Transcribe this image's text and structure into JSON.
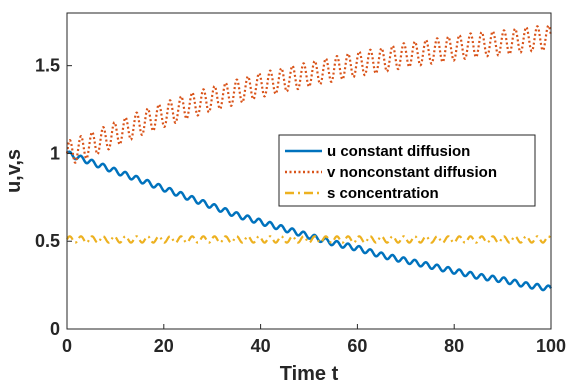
{
  "chart_data": {
    "type": "line",
    "title": "",
    "xlabel": "Time t",
    "ylabel": "u,v,s",
    "xlim": [
      0,
      100
    ],
    "ylim": [
      0,
      1.8
    ],
    "xticks": [
      0,
      20,
      40,
      60,
      80,
      100
    ],
    "xtick_labels": [
      "0",
      "20",
      "40",
      "60",
      "80",
      "100"
    ],
    "yticks": [
      0,
      0.5,
      1,
      1.5
    ],
    "ytick_labels": [
      "0",
      "0.5",
      "1",
      "1.5"
    ],
    "grid": false,
    "legend_position": "right, upper-middle",
    "x": [
      0,
      5,
      10,
      15,
      20,
      25,
      30,
      35,
      40,
      45,
      50,
      55,
      60,
      65,
      70,
      75,
      80,
      85,
      90,
      95,
      100
    ],
    "series": [
      {
        "name": "u constant diffusion",
        "color": "#0072BD",
        "style": "solid",
        "values": [
          1.0,
          0.95,
          0.9,
          0.85,
          0.8,
          0.75,
          0.7,
          0.65,
          0.61,
          0.57,
          0.53,
          0.49,
          0.46,
          0.42,
          0.39,
          0.36,
          0.33,
          0.3,
          0.28,
          0.25,
          0.23
        ],
        "oscillation": {
          "amplitude": 0.015,
          "period": 2.3
        }
      },
      {
        "name": "v nonconstant diffusion",
        "color": "#D95319",
        "style": "dotted",
        "values": [
          1.0,
          1.05,
          1.11,
          1.17,
          1.22,
          1.27,
          1.31,
          1.35,
          1.39,
          1.42,
          1.45,
          1.48,
          1.51,
          1.53,
          1.56,
          1.58,
          1.6,
          1.62,
          1.63,
          1.65,
          1.66
        ],
        "oscillation": {
          "amplitude": 0.07,
          "period": 2.3
        }
      },
      {
        "name": "s concentration",
        "color": "#EDB120",
        "style": "dashdot",
        "values": [
          0.51,
          0.51,
          0.51,
          0.51,
          0.51,
          0.51,
          0.51,
          0.51,
          0.51,
          0.51,
          0.51,
          0.51,
          0.51,
          0.51,
          0.51,
          0.51,
          0.51,
          0.51,
          0.51,
          0.51,
          0.51
        ],
        "oscillation": {
          "amplitude": 0.018,
          "period": 2.3
        }
      }
    ]
  }
}
